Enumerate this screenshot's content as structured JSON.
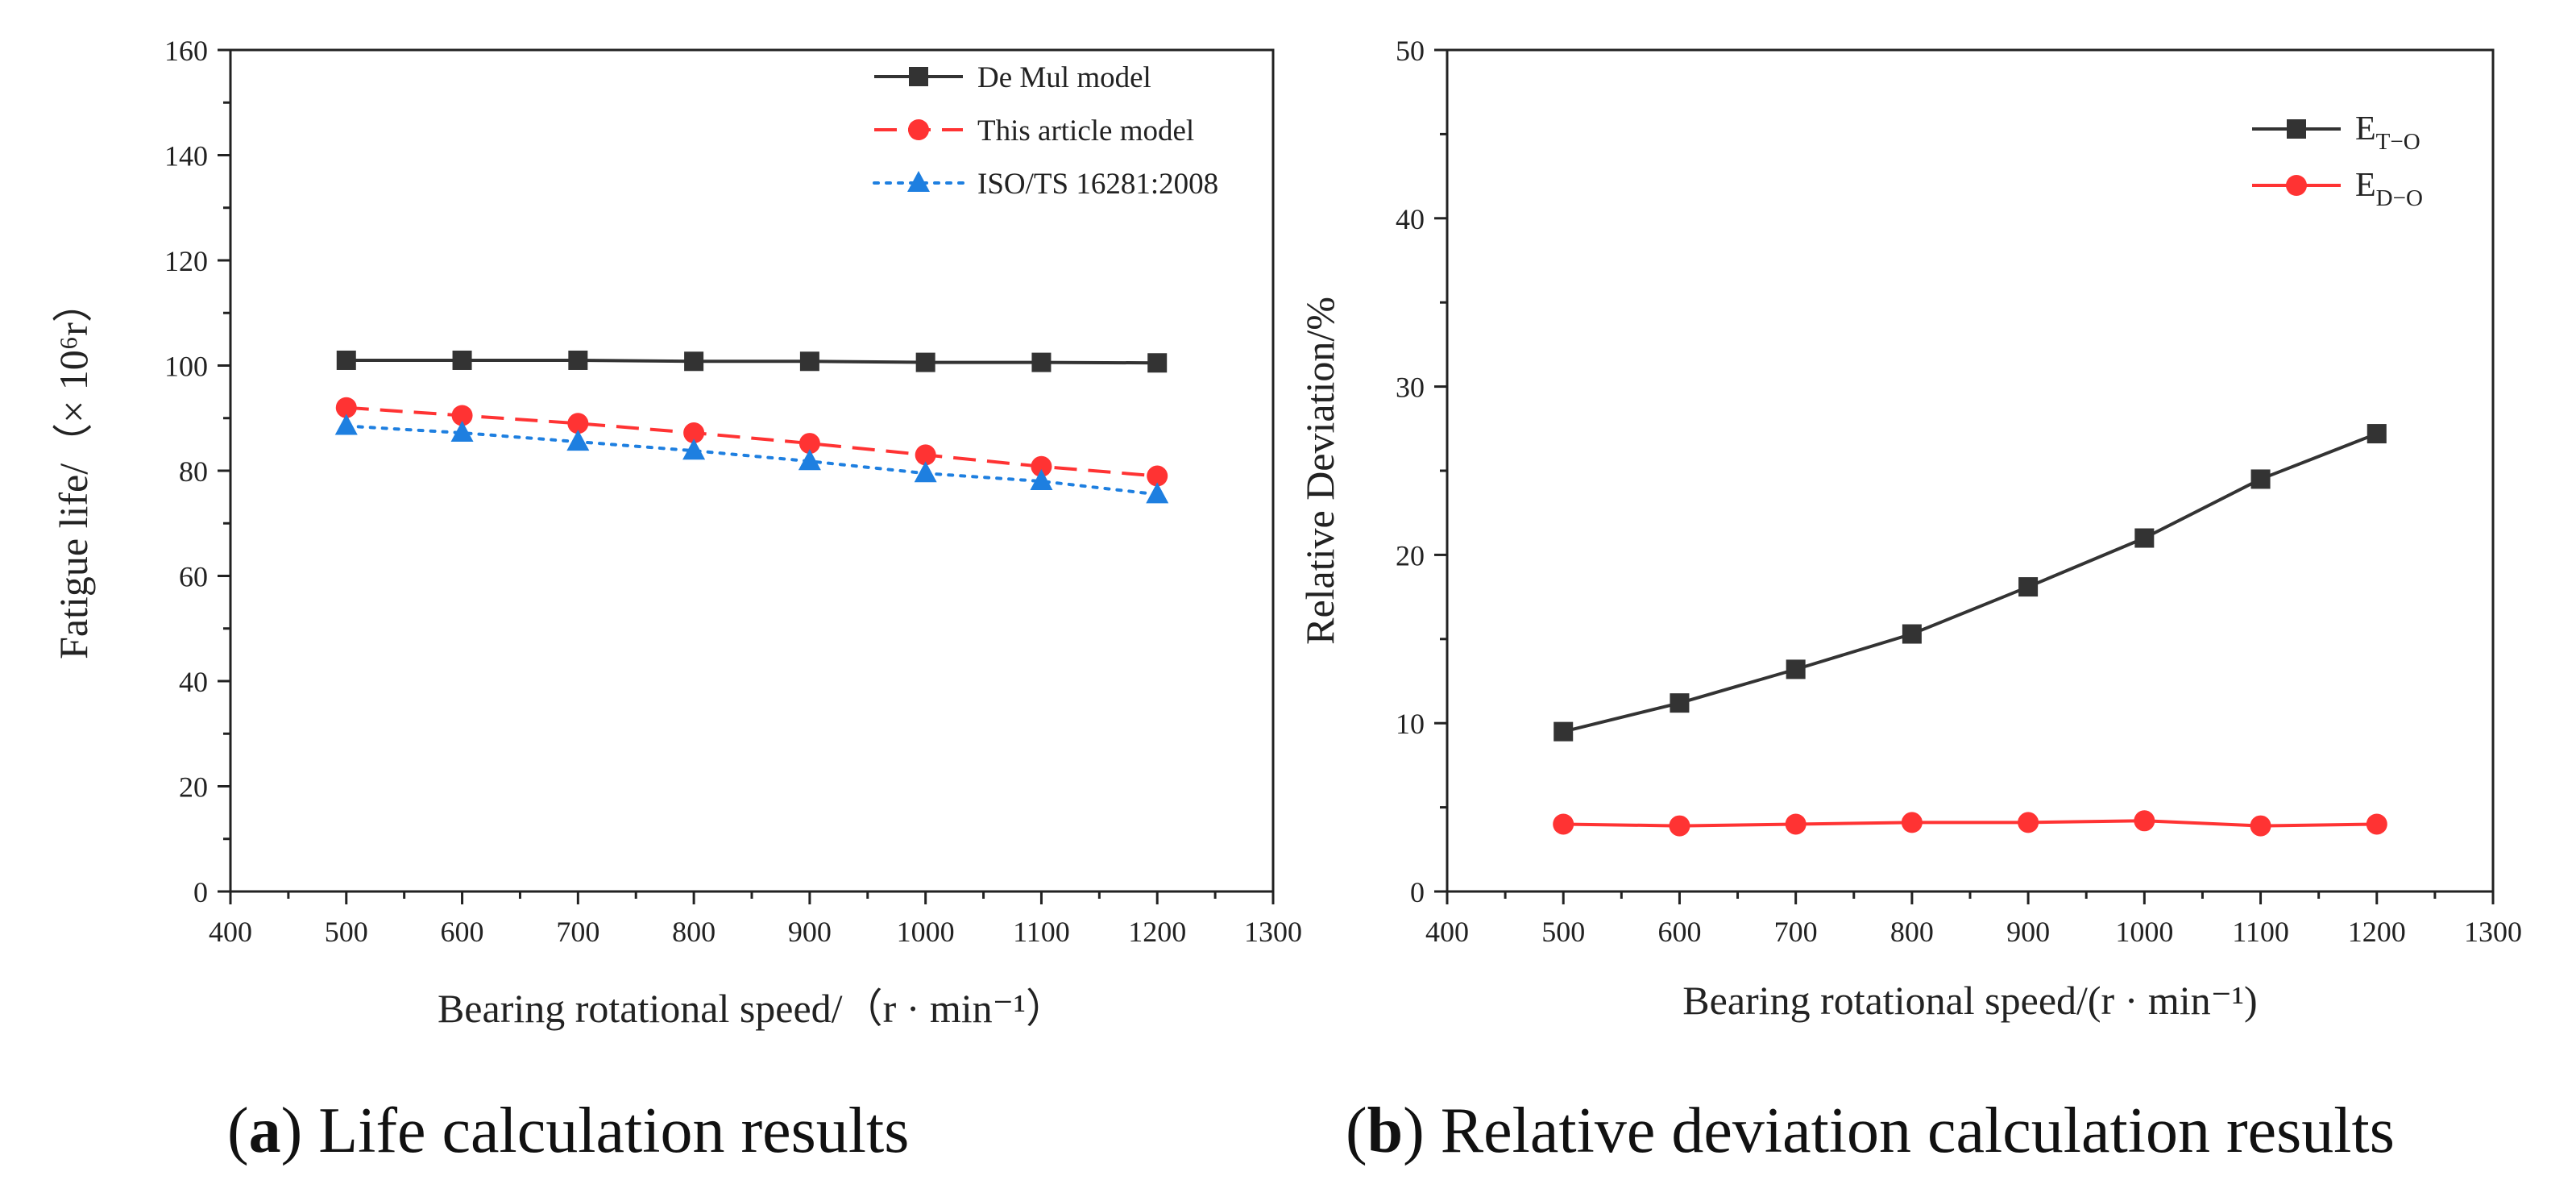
{
  "chart_data": [
    {
      "type": "line",
      "xlabel": "Bearing rotational speed/（r · min⁻¹）",
      "ylabel": "Fatigue life/（× 10⁶r）",
      "xlim": [
        400,
        1300
      ],
      "ylim": [
        0,
        160
      ],
      "xticks": [
        "400",
        "500",
        "600",
        "700",
        "800",
        "900",
        "1000",
        "1100",
        "1200",
        "1300"
      ],
      "yticks": [
        "0",
        "20",
        "40",
        "60",
        "80",
        "100",
        "120",
        "140",
        "160"
      ],
      "x": [
        500,
        600,
        700,
        800,
        900,
        1000,
        1100,
        1200
      ],
      "legend_position": "top-right",
      "grid": false,
      "series": [
        {
          "name": "De Mul model",
          "color": "#333333",
          "line_style": "solid",
          "marker": "square",
          "values": [
            101,
            101,
            101,
            100.8,
            100.8,
            100.6,
            100.6,
            100.5
          ]
        },
        {
          "name": "This article model",
          "color": "#ff3333",
          "line_style": "dashed",
          "marker": "circle",
          "values": [
            92,
            90.5,
            89,
            87.2,
            85.2,
            83,
            80.8,
            79
          ]
        },
        {
          "name": "ISO/TS 16281:2008",
          "color": "#1e7fe0",
          "line_style": "dotted",
          "marker": "triangle",
          "values": [
            88.5,
            87.2,
            85.5,
            83.8,
            81.8,
            79.5,
            78,
            75.5
          ]
        }
      ]
    },
    {
      "type": "line",
      "xlabel": "Bearing rotational speed/(r · min⁻¹)",
      "ylabel": "Relative Deviation/%",
      "xlim": [
        400,
        1300
      ],
      "ylim": [
        0,
        50
      ],
      "xticks": [
        "400",
        "500",
        "600",
        "700",
        "800",
        "900",
        "1000",
        "1100",
        "1200",
        "1300"
      ],
      "yticks": [
        "0",
        "10",
        "20",
        "30",
        "40",
        "50"
      ],
      "x": [
        500,
        600,
        700,
        800,
        900,
        1000,
        1100,
        1200
      ],
      "legend_position": "top-right",
      "grid": false,
      "series": [
        {
          "name": "E",
          "subscript": "T−O",
          "color": "#333333",
          "line_style": "solid",
          "marker": "square",
          "values": [
            9.5,
            11.2,
            13.2,
            15.3,
            18.1,
            21,
            24.5,
            27.2
          ]
        },
        {
          "name": "E",
          "subscript": "D−O",
          "color": "#ff3333",
          "line_style": "solid",
          "marker": "circle",
          "values": [
            4,
            3.9,
            4,
            4.1,
            4.1,
            4.2,
            3.9,
            4
          ]
        }
      ]
    }
  ],
  "captions": [
    {
      "letter": "a",
      "text": "Life calculation results"
    },
    {
      "letter": "b",
      "text": "Relative deviation calculation results"
    }
  ]
}
